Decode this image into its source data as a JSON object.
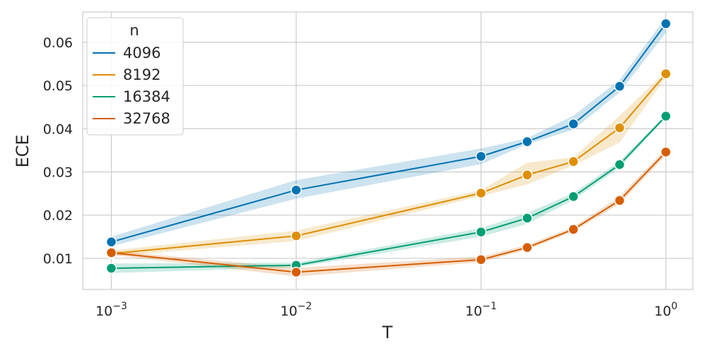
{
  "chart_data": {
    "type": "line",
    "xscale": "log",
    "x": [
      0.001,
      0.01,
      0.1,
      0.1778,
      0.3162,
      0.5623,
      1.0
    ],
    "xlabel": "T",
    "ylabel": "ECE",
    "xlim": [
      0.0007,
      1.4
    ],
    "ylim": [
      0.0028,
      0.067
    ],
    "xticks": [
      {
        "value": 0.001,
        "base": "10",
        "exp": "−3"
      },
      {
        "value": 0.01,
        "base": "10",
        "exp": "−2"
      },
      {
        "value": 0.1,
        "base": "10",
        "exp": "−1"
      },
      {
        "value": 1.0,
        "base": "10",
        "exp": "0"
      }
    ],
    "yticks": [
      {
        "value": 0.01,
        "label": "0.01"
      },
      {
        "value": 0.02,
        "label": "0.02"
      },
      {
        "value": 0.03,
        "label": "0.03"
      },
      {
        "value": 0.04,
        "label": "0.04"
      },
      {
        "value": 0.05,
        "label": "0.05"
      },
      {
        "value": 0.06,
        "label": "0.06"
      }
    ],
    "grid": true,
    "legend": {
      "title": "n",
      "position": "top-left"
    },
    "series": [
      {
        "name": "4096",
        "color": "#0173b2",
        "values": [
          0.0138,
          0.0258,
          0.0336,
          0.037,
          0.0411,
          0.0498,
          0.0643
        ],
        "lower": [
          0.0128,
          0.0238,
          0.0318,
          0.0364,
          0.0398,
          0.0484,
          0.0622
        ],
        "upper": [
          0.015,
          0.0281,
          0.0354,
          0.0378,
          0.043,
          0.0513,
          0.0658
        ]
      },
      {
        "name": "8192",
        "color": "#de8f05",
        "values": [
          0.0111,
          0.0152,
          0.0251,
          0.0293,
          0.0324,
          0.0402,
          0.0527
        ],
        "lower": [
          0.0105,
          0.014,
          0.0244,
          0.0271,
          0.0315,
          0.0368,
          0.0519
        ],
        "upper": [
          0.0118,
          0.0164,
          0.0258,
          0.0321,
          0.0334,
          0.043,
          0.0532
        ]
      },
      {
        "name": "16384",
        "color": "#029e73",
        "values": [
          0.0077,
          0.0084,
          0.0161,
          0.0193,
          0.0243,
          0.0317,
          0.0429
        ],
        "lower": [
          0.0066,
          0.0079,
          0.015,
          0.018,
          0.0235,
          0.031,
          0.0425
        ],
        "upper": [
          0.0088,
          0.009,
          0.017,
          0.0205,
          0.0251,
          0.0325,
          0.0433
        ]
      },
      {
        "name": "32768",
        "color": "#d55e00",
        "values": [
          0.0113,
          0.0068,
          0.0097,
          0.0125,
          0.0167,
          0.0234,
          0.0346
        ],
        "lower": [
          0.0108,
          0.0058,
          0.0091,
          0.012,
          0.0162,
          0.0226,
          0.0338
        ],
        "upper": [
          0.0118,
          0.0078,
          0.0104,
          0.0131,
          0.0173,
          0.0243,
          0.0354
        ]
      }
    ]
  }
}
